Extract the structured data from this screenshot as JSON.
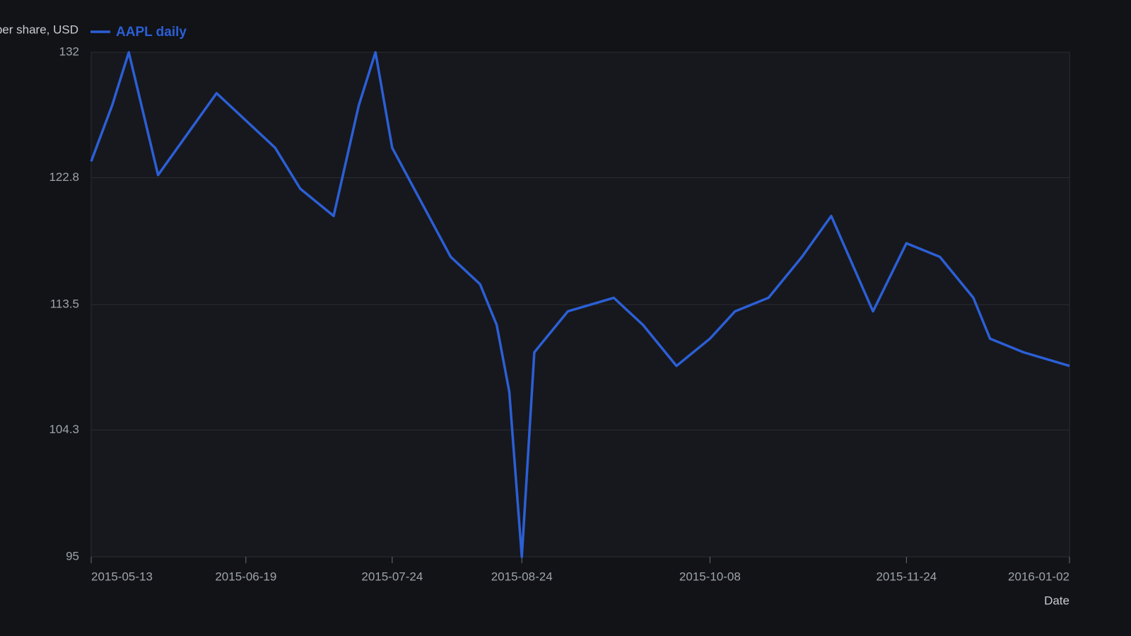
{
  "chart_data": {
    "type": "line",
    "y_label": "Price per share, USD",
    "x_label": "Date",
    "x": [
      "2015-05-13",
      "2015-05-18",
      "2015-05-22",
      "2015-05-29",
      "2015-06-12",
      "2015-06-26",
      "2015-07-02",
      "2015-07-10",
      "2015-07-16",
      "2015-07-20",
      "2015-07-24",
      "2015-07-31",
      "2015-08-07",
      "2015-08-14",
      "2015-08-18",
      "2015-08-21",
      "2015-08-24",
      "2015-08-27",
      "2015-09-04",
      "2015-09-15",
      "2015-09-22",
      "2015-09-30",
      "2015-10-08",
      "2015-10-14",
      "2015-10-22",
      "2015-10-30",
      "2015-11-06",
      "2015-11-16",
      "2015-11-24",
      "2015-12-02",
      "2015-12-10",
      "2015-12-14",
      "2015-12-22",
      "2016-01-02"
    ],
    "series": [
      {
        "name": "AAPL daily",
        "color": "#2c5fd6",
        "values": [
          124.0,
          128.1,
          132.0,
          123.0,
          129.0,
          125.0,
          122.0,
          120.0,
          128.1,
          132.0,
          125.0,
          121.0,
          117.0,
          115.0,
          112.0,
          107.1,
          95.0,
          110.0,
          113.0,
          114.0,
          112.0,
          109.0,
          111.0,
          113.0,
          114.0,
          117.0,
          120.0,
          113.0,
          118.0,
          117.0,
          114.0,
          111.0,
          110.0,
          109.0
        ]
      }
    ],
    "xlim": [
      "2015-05-13",
      "2016-01-02"
    ],
    "xticks": [
      "2015-05-13",
      "2015-06-19",
      "2015-07-24",
      "2015-08-24",
      "2015-10-08",
      "2015-11-24",
      "2016-01-02"
    ],
    "ylim": [
      95,
      132
    ],
    "yticks": [
      95,
      104.3,
      113.5,
      122.8,
      132
    ],
    "grid": true,
    "legend": "top-left"
  }
}
